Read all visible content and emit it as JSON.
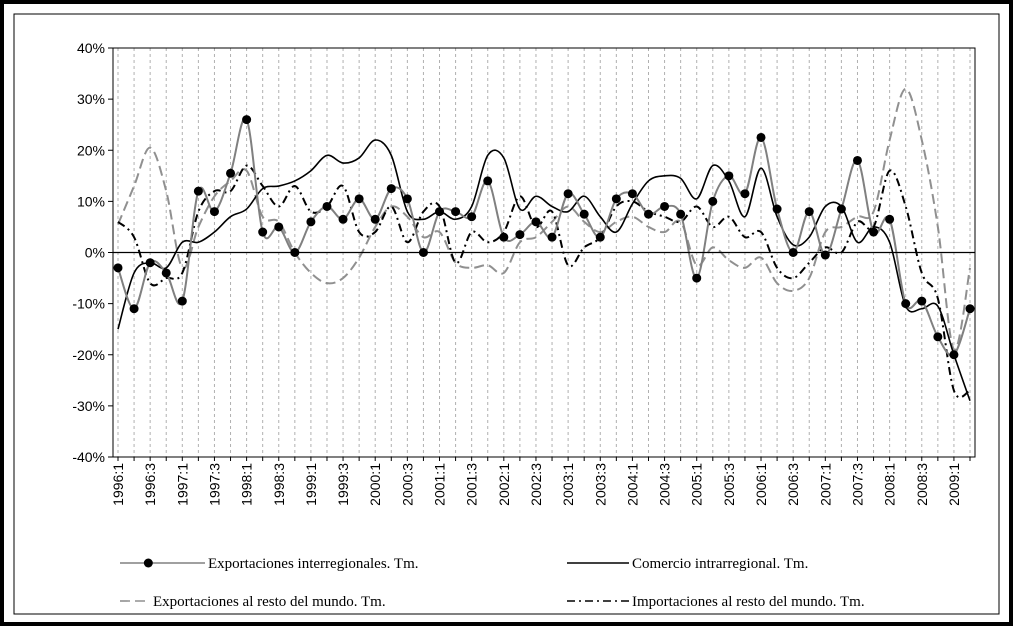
{
  "chart_data": {
    "type": "line",
    "categories": [
      "1996:1",
      null,
      "1996:3",
      null,
      "1997:1",
      null,
      "1997:3",
      null,
      "1998:1",
      null,
      "1998:3",
      null,
      "1999:1",
      null,
      "1999:3",
      null,
      "2000:1",
      null,
      "2000:3",
      null,
      "2001:1",
      null,
      "2001:3",
      null,
      "2002:1",
      null,
      "2002:3",
      null,
      "2003:1",
      null,
      "2003:3",
      null,
      "2004:1",
      null,
      "2004:3",
      null,
      "2005:1",
      null,
      "2005:3",
      null,
      "2006:1",
      null,
      "2006:3",
      null,
      "2007:1",
      null,
      "2007:3",
      null,
      "2008:1",
      null,
      "2008:3",
      null,
      "2009:1",
      null
    ],
    "ylim": [
      -40,
      40
    ],
    "yticks": [
      {
        "value": -40,
        "label": "-40%"
      },
      {
        "value": -30,
        "label": "-30%"
      },
      {
        "value": -20,
        "label": "-20%"
      },
      {
        "value": -10,
        "label": "-10%"
      },
      {
        "value": 0,
        "label": "0%"
      },
      {
        "value": 10,
        "label": "10%"
      },
      {
        "value": 20,
        "label": "20%"
      },
      {
        "value": 30,
        "label": "30%"
      },
      {
        "value": 40,
        "label": "40%"
      }
    ],
    "category_grid": true,
    "legend": "bottom",
    "series": [
      {
        "name": "Exportaciones interregionales. Tm.",
        "color": "#808080",
        "marker": "circle",
        "marker_color": "#000000",
        "dash": "solid",
        "values": [
          -3,
          -11,
          -2,
          -4,
          -9.5,
          12,
          8,
          15.5,
          26,
          4,
          5,
          0,
          6,
          9,
          6.5,
          10.5,
          6.5,
          12.5,
          10.5,
          0,
          8,
          8,
          7,
          14,
          3,
          3.5,
          6,
          3,
          11.5,
          7.5,
          3,
          10.5,
          11.5,
          7.5,
          9,
          7.5,
          -5,
          10,
          15,
          11.5,
          22.5,
          8.5,
          0,
          8,
          -0.5,
          8.5,
          18,
          4,
          6.5,
          -10,
          -9.5,
          -16.5,
          -20,
          -11
        ]
      },
      {
        "name": "Comercio intrarregional. Tm.",
        "color": "#000000",
        "dash": "solid",
        "values": [
          -15,
          -4,
          -2,
          -3,
          2,
          2,
          4,
          7,
          8.5,
          12.5,
          13,
          14,
          16,
          19,
          17.5,
          18.5,
          22,
          19,
          8,
          6.5,
          8,
          6.5,
          9,
          19,
          18.5,
          8.5,
          11,
          9,
          8,
          11,
          7,
          4,
          9.5,
          14,
          15,
          14.5,
          10.5,
          17,
          14,
          7,
          16.5,
          7,
          1.5,
          3,
          9,
          9,
          2,
          5,
          2,
          -10.5,
          -11,
          -10.5,
          -20,
          -29
        ]
      },
      {
        "name": "Exportaciones al resto del mundo. Tm.",
        "color": "#909090",
        "dash": "dashed",
        "values": [
          5.5,
          13,
          20.5,
          12,
          -3,
          5,
          11,
          14,
          16,
          7,
          6,
          0,
          -4,
          -6,
          -5,
          -1,
          5,
          9,
          7,
          3,
          4,
          -2,
          -3,
          -2.5,
          -4,
          2,
          3,
          6,
          9,
          6,
          4,
          6,
          7,
          5,
          4,
          6,
          -2.5,
          1,
          -1.5,
          -3,
          -1,
          -6,
          -7.5,
          -5,
          4,
          5,
          7,
          8,
          22,
          32,
          22,
          5,
          -19,
          -3
        ]
      },
      {
        "name": "Importaciones al resto del mundo. Tm.",
        "color": "#000000",
        "dash": "dashdot",
        "values": [
          6,
          3,
          -6,
          -5,
          -4,
          8,
          12,
          12,
          17,
          13,
          9,
          13,
          8,
          9,
          13,
          4,
          4,
          9,
          2,
          8,
          9,
          -2,
          4,
          2,
          4,
          11,
          5,
          8,
          -2.5,
          1,
          3,
          9,
          10,
          8,
          7,
          6,
          9,
          5,
          7,
          3,
          4,
          -3,
          -5,
          -2,
          1,
          0,
          6,
          5,
          16,
          9,
          -4,
          -9,
          -27,
          -27
        ]
      }
    ]
  }
}
